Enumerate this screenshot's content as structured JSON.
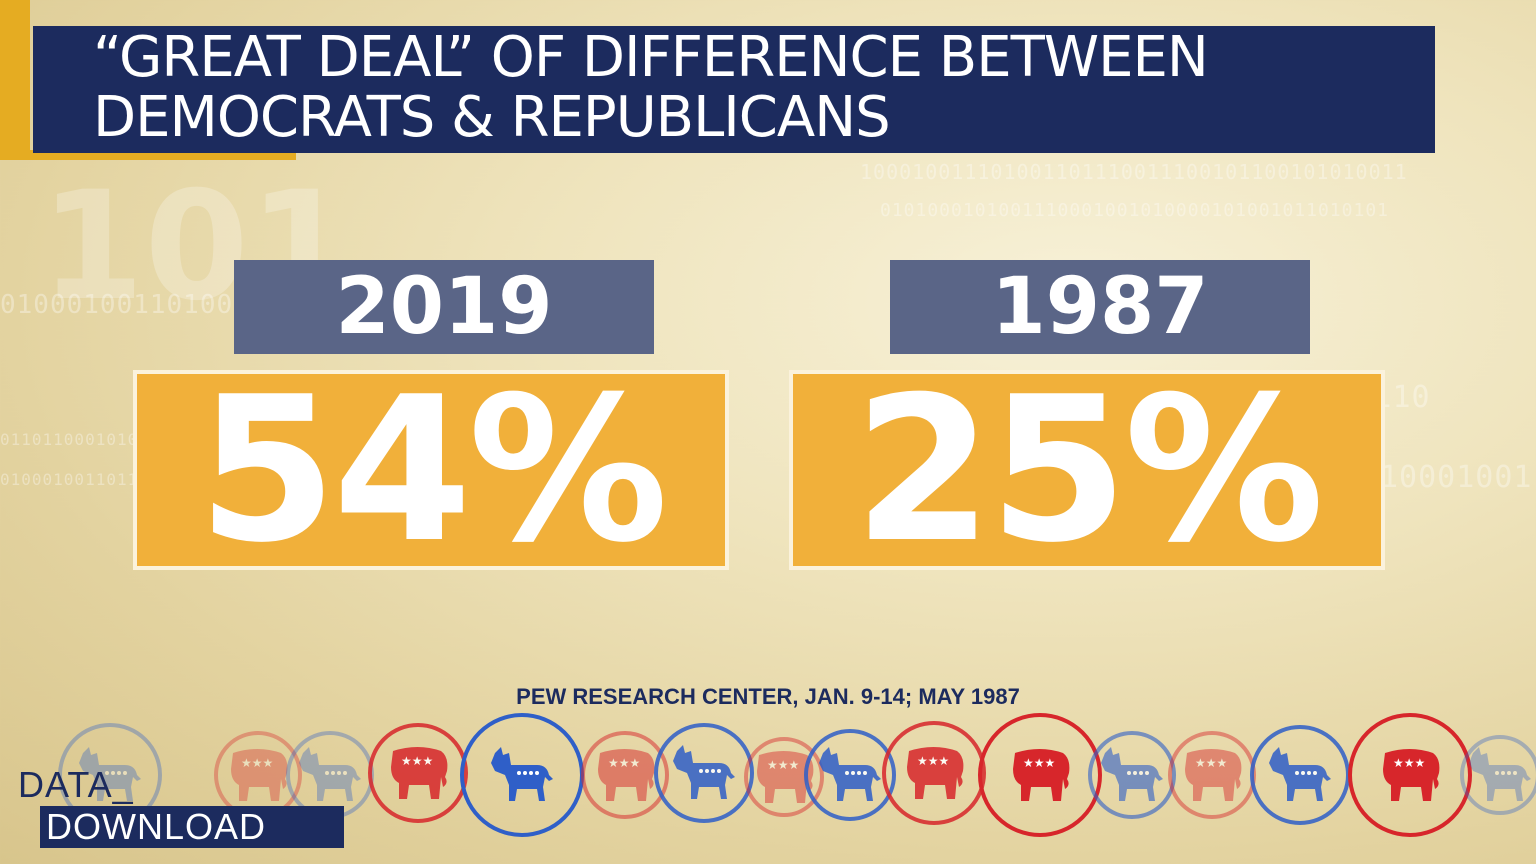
{
  "title": {
    "line1": "“GREAT DEAL” OF DIFFERENCE BETWEEN",
    "line2": "DEMOCRATS & REPUBLICANS"
  },
  "panels": [
    {
      "year": "2019",
      "value": "54%"
    },
    {
      "year": "1987",
      "value": "25%"
    }
  ],
  "source": "PEW RESEARCH CENTER, JAN. 9-14; MAY 1987",
  "logo": {
    "line1": "DATA_",
    "line2": "DOWNLOAD"
  },
  "colors": {
    "navy": "#1c2b5e",
    "gold": "#e5ac22",
    "orange": "#f1b03a",
    "slate": "#5a6587",
    "dem_blue": "#2f5fc8",
    "gop_red": "#d7262b"
  },
  "icons": [
    {
      "name": "donkey-icon",
      "party": "dem"
    },
    {
      "name": "elephant-icon",
      "party": "gop"
    },
    {
      "name": "donkey-icon",
      "party": "dem"
    },
    {
      "name": "elephant-icon",
      "party": "gop"
    },
    {
      "name": "donkey-icon",
      "party": "dem"
    },
    {
      "name": "elephant-icon",
      "party": "gop"
    },
    {
      "name": "donkey-icon",
      "party": "dem"
    },
    {
      "name": "elephant-icon",
      "party": "gop"
    },
    {
      "name": "donkey-icon",
      "party": "dem"
    },
    {
      "name": "elephant-icon",
      "party": "gop"
    },
    {
      "name": "elephant-icon",
      "party": "gop"
    },
    {
      "name": "donkey-icon",
      "party": "dem"
    },
    {
      "name": "elephant-icon",
      "party": "gop"
    },
    {
      "name": "donkey-icon",
      "party": "dem"
    },
    {
      "name": "elephant-icon",
      "party": "gop"
    },
    {
      "name": "donkey-icon",
      "party": "dem"
    }
  ]
}
